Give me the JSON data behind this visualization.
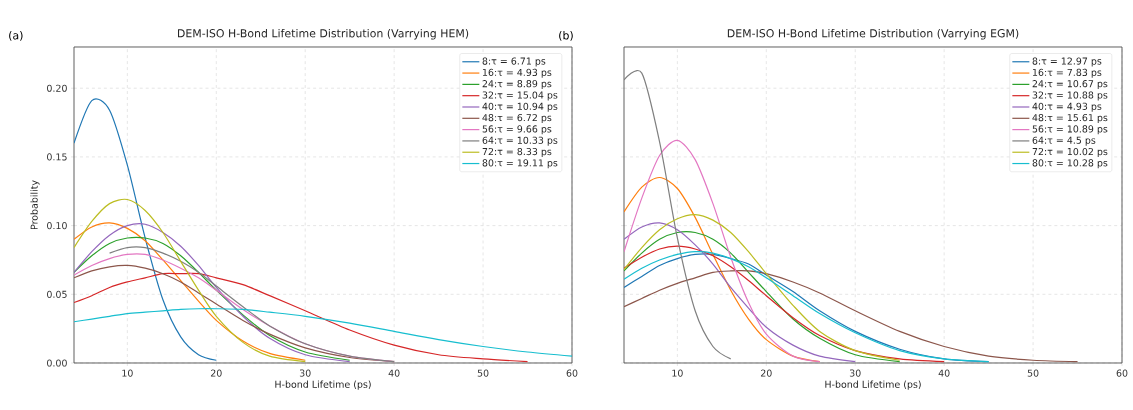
{
  "chart_data": [
    {
      "type": "line",
      "title": "DEM-ISO H-Bond Lifetime Distribution (Varrying HEM)",
      "xlabel": "H-bond Lifetime (ps)",
      "ylabel": "Probability",
      "annotations": [
        "(a)"
      ],
      "x": [
        4,
        6,
        8,
        10,
        12,
        14,
        16,
        18,
        20,
        23,
        26,
        30,
        35,
        40,
        45,
        50,
        55,
        60
      ],
      "xlim": [
        4,
        60
      ],
      "ylim": [
        0,
        0.23
      ],
      "xticks": [
        10,
        20,
        30,
        40,
        50,
        60
      ],
      "yticks": [
        {
          "value": 0,
          "label": "0.00"
        },
        {
          "value": 0.05,
          "label": "0.05"
        },
        {
          "value": 0.1,
          "label": "0.10"
        },
        {
          "value": 0.15,
          "label": "0.15"
        },
        {
          "value": 0.2,
          "label": "0.20"
        }
      ],
      "grid": true,
      "legend": "top right",
      "line_style": "solid",
      "series": [
        {
          "name": "8:τ = 6.71 ps",
          "color": "#1f77b4",
          "values": [
            0.16,
            0.191,
            0.184,
            0.144,
            0.091,
            0.046,
            0.019,
            0.006,
            0.002,
            null,
            null,
            null,
            null,
            null,
            null,
            null,
            null,
            null
          ]
        },
        {
          "name": "16:τ = 4.93 ps",
          "color": "#ff7f0e",
          "values": [
            0.09,
            0.099,
            0.102,
            0.098,
            0.089,
            0.075,
            0.06,
            0.045,
            0.031,
            0.016,
            0.007,
            0.002,
            null,
            null,
            null,
            null,
            null,
            null
          ]
        },
        {
          "name": "24:τ = 8.89 ps",
          "color": "#2ca02c",
          "values": [
            0.066,
            0.078,
            0.087,
            0.091,
            0.091,
            0.087,
            0.078,
            0.066,
            0.053,
            0.035,
            0.02,
            0.008,
            0.002,
            null,
            null,
            null,
            null,
            null
          ]
        },
        {
          "name": "32:τ = 15.04 ps",
          "color": "#d62728",
          "values": [
            0.044,
            0.049,
            0.055,
            0.059,
            0.062,
            0.065,
            0.065,
            0.065,
            0.062,
            0.057,
            0.049,
            0.038,
            0.024,
            0.013,
            0.006,
            0.003,
            0.001,
            null
          ]
        },
        {
          "name": "40:τ = 10.94 ps",
          "color": "#9467bd",
          "values": [
            0.066,
            0.081,
            0.093,
            0.1,
            0.101,
            0.095,
            0.085,
            0.071,
            0.055,
            0.034,
            0.018,
            0.006,
            0.001,
            null,
            null,
            null,
            null,
            null
          ]
        },
        {
          "name": "48:τ = 6.72 ps",
          "color": "#8c564b",
          "values": [
            0.062,
            0.067,
            0.07,
            0.071,
            0.069,
            0.065,
            0.059,
            0.051,
            0.043,
            0.031,
            0.021,
            0.011,
            0.004,
            0.001,
            null,
            null,
            null,
            null
          ]
        },
        {
          "name": "56:τ = 9.66 ps",
          "color": "#e377c2",
          "values": [
            0.064,
            0.071,
            0.076,
            0.079,
            0.079,
            0.075,
            0.069,
            0.062,
            0.053,
            0.039,
            0.027,
            0.014,
            0.005,
            0.001,
            null,
            null,
            null,
            null
          ]
        },
        {
          "name": "64:τ = 10.33 ps",
          "color": "#7f7f7f",
          "values": [
            null,
            null,
            0.08,
            0.084,
            0.084,
            0.08,
            0.074,
            0.066,
            0.056,
            0.041,
            0.027,
            0.014,
            0.005,
            0.001,
            null,
            null,
            null,
            null
          ]
        },
        {
          "name": "72:τ = 8.33 ps",
          "color": "#bcbd22",
          "values": [
            0.084,
            0.103,
            0.116,
            0.119,
            0.111,
            0.095,
            0.074,
            0.053,
            0.034,
            0.015,
            0.005,
            0.001,
            null,
            null,
            null,
            null,
            null,
            null
          ]
        },
        {
          "name": "80:τ = 19.11 ps",
          "color": "#17becf",
          "values": [
            0.03,
            0.032,
            0.034,
            0.036,
            0.037,
            0.038,
            0.039,
            0.0395,
            0.0395,
            0.039,
            0.037,
            0.034,
            0.029,
            0.023,
            0.017,
            0.012,
            0.008,
            0.005
          ]
        }
      ]
    },
    {
      "type": "line",
      "title": "DEM-ISO H-Bond Lifetime Distribution (Varrying EGM)",
      "xlabel": "H-bond Lifetime (ps)",
      "annotations": [
        "(b)"
      ],
      "x": [
        4,
        6,
        8,
        10,
        12,
        14,
        16,
        18,
        20,
        23,
        26,
        30,
        35,
        40,
        45,
        50,
        55
      ],
      "xlim": [
        4,
        60
      ],
      "ylim": [
        0,
        0.23
      ],
      "xticks": [
        10,
        20,
        30,
        40,
        50,
        60
      ],
      "yticks": [
        {
          "value": 0,
          "label": null
        },
        {
          "value": 0.05,
          "label": null
        },
        {
          "value": 0.1,
          "label": null
        },
        {
          "value": 0.15,
          "label": null
        },
        {
          "value": 0.2,
          "label": null
        }
      ],
      "tick_labels": "x",
      "grid": true,
      "legend": "top right",
      "line_style": "solid",
      "series": [
        {
          "name": "8:τ = 12.97 ps",
          "color": "#1f77b4",
          "values": [
            0.055,
            0.063,
            0.071,
            0.076,
            0.079,
            0.079,
            0.076,
            0.072,
            0.064,
            0.052,
            0.038,
            0.023,
            0.01,
            0.003,
            0.001,
            null,
            null
          ]
        },
        {
          "name": "16:τ = 7.83 ps",
          "color": "#ff7f0e",
          "values": [
            0.11,
            0.128,
            0.135,
            0.127,
            0.106,
            0.079,
            0.053,
            0.032,
            0.017,
            0.005,
            0.001,
            null,
            null,
            null,
            null,
            null,
            null
          ]
        },
        {
          "name": "24:τ = 10.67 ps",
          "color": "#2ca02c",
          "values": [
            0.067,
            0.08,
            0.09,
            0.095,
            0.095,
            0.09,
            0.08,
            0.066,
            0.052,
            0.032,
            0.018,
            0.006,
            0.001,
            null,
            null,
            null,
            null
          ]
        },
        {
          "name": "32:τ = 10.88 ps",
          "color": "#d62728",
          "values": [
            0.069,
            0.077,
            0.083,
            0.085,
            0.083,
            0.078,
            0.07,
            0.06,
            0.049,
            0.033,
            0.02,
            0.009,
            0.003,
            0.001,
            null,
            null,
            null
          ]
        },
        {
          "name": "40:τ = 4.93 ps",
          "color": "#9467bd",
          "values": [
            0.09,
            0.099,
            0.102,
            0.097,
            0.086,
            0.072,
            0.055,
            0.04,
            0.026,
            0.013,
            0.005,
            0.001,
            null,
            null,
            null,
            null,
            null
          ]
        },
        {
          "name": "48:τ = 15.61 ps",
          "color": "#8c564b",
          "values": [
            0.041,
            0.047,
            0.053,
            0.058,
            0.062,
            0.066,
            0.067,
            0.067,
            0.065,
            0.059,
            0.051,
            0.038,
            0.023,
            0.012,
            0.005,
            0.002,
            0.001
          ]
        },
        {
          "name": "56:τ = 10.89 ps",
          "color": "#e377c2",
          "values": [
            0.081,
            0.12,
            0.151,
            0.162,
            0.148,
            0.116,
            0.077,
            0.044,
            0.021,
            0.005,
            0.001,
            null,
            null,
            null,
            null,
            null,
            null
          ]
        },
        {
          "name": "64:τ = 4.5 ps",
          "color": "#7f7f7f",
          "values": [
            0.206,
            0.211,
            0.161,
            0.091,
            0.038,
            0.012,
            0.003,
            null,
            null,
            null,
            null,
            null,
            null,
            null,
            null,
            null,
            null
          ]
        },
        {
          "name": "72:τ = 10.02 ps",
          "color": "#bcbd22",
          "values": [
            0.068,
            0.084,
            0.097,
            0.105,
            0.108,
            0.104,
            0.095,
            0.081,
            0.065,
            0.042,
            0.023,
            0.009,
            0.002,
            null,
            null,
            null,
            null
          ]
        },
        {
          "name": "80:τ = 10.28 ps",
          "color": "#17becf",
          "values": [
            0.061,
            0.069,
            0.075,
            0.079,
            0.081,
            0.08,
            0.076,
            0.07,
            0.062,
            0.049,
            0.036,
            0.022,
            0.009,
            0.003,
            0.001,
            null,
            null
          ]
        }
      ]
    }
  ]
}
